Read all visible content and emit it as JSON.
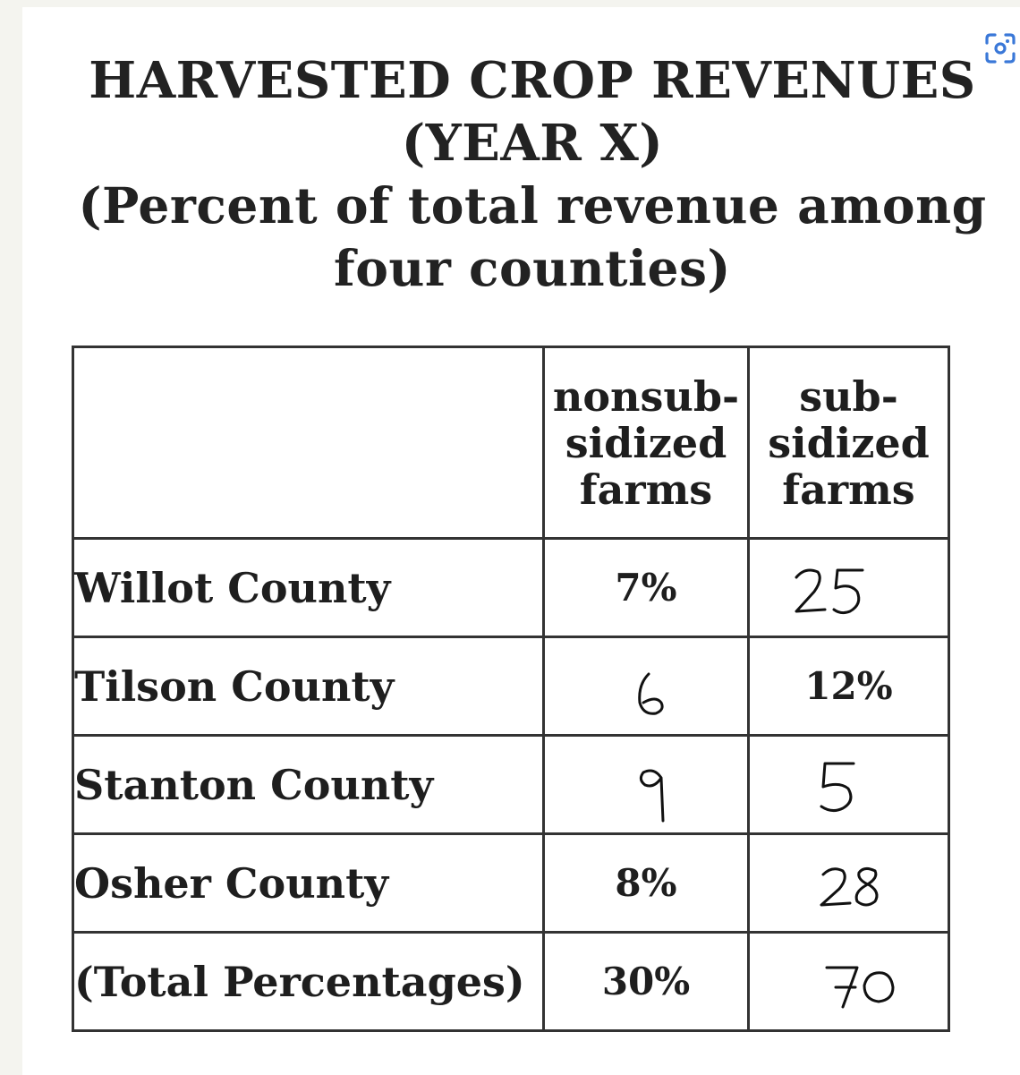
{
  "title": {
    "line1": "HARVESTED CROP REVENUES",
    "line2": "(YEAR X)",
    "line3": "(Percent of total revenue among",
    "line4": "four counties)"
  },
  "table": {
    "headers": [
      [
        "nonsub-",
        "sidized",
        "farms"
      ],
      [
        "sub-",
        "sidized",
        "farms"
      ]
    ],
    "rows": [
      {
        "label": "Willot County",
        "nonsubsidized": "7%",
        "subsidized": "25",
        "handwritten": "subsidized"
      },
      {
        "label": "Tilson County",
        "nonsubsidized": "6",
        "subsidized": "12%",
        "handwritten": "nonsubsidized"
      },
      {
        "label": "Stanton County",
        "nonsubsidized": "9",
        "subsidized": "5",
        "handwritten": "both"
      },
      {
        "label": "Osher County",
        "nonsubsidized": "8%",
        "subsidized": "28",
        "handwritten": "subsidized"
      },
      {
        "label": "(Total Percentages)",
        "nonsubsidized": "30%",
        "subsidized": "70",
        "handwritten": "subsidized"
      }
    ]
  },
  "icons": [
    "lens-icon"
  ]
}
